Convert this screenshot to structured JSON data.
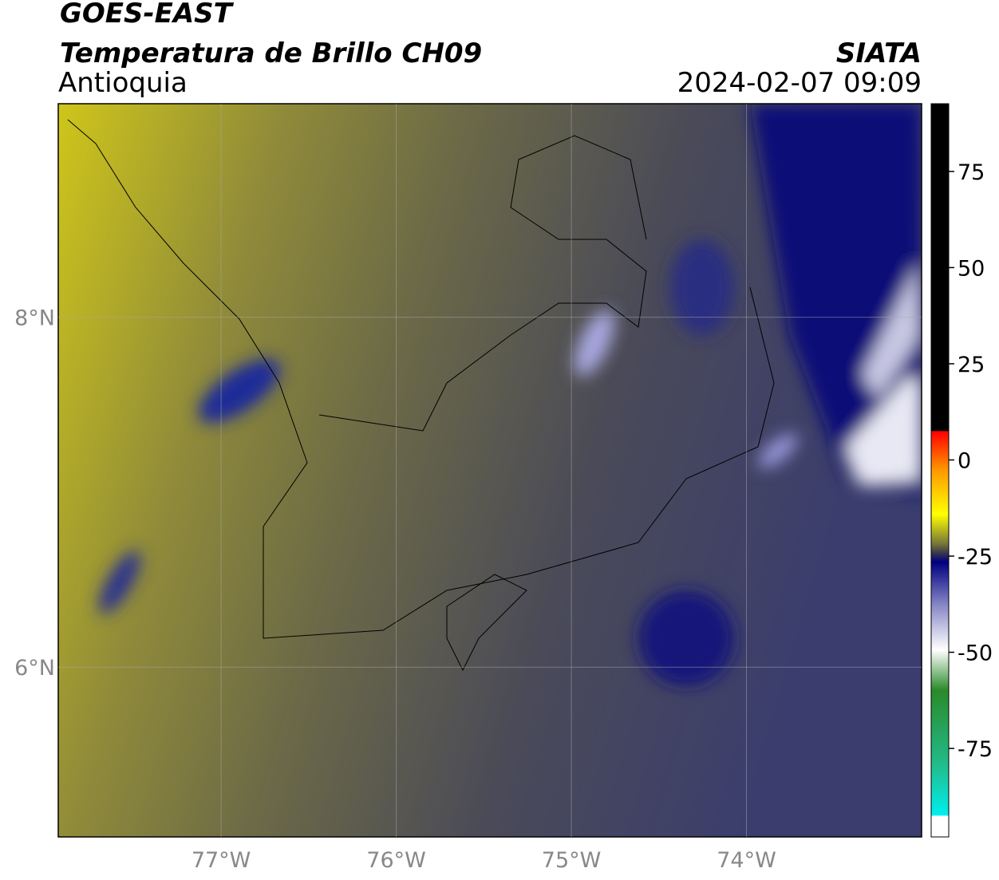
{
  "header": {
    "title": "GOES-EAST",
    "subtitle": "Temperatura de Brillo CH09",
    "region": "Antioquia",
    "source": "SIATA",
    "datetime": "2024-02-07 09:09"
  },
  "map": {
    "xlim": [
      -77.93,
      -73.0
    ],
    "ylim": [
      5.03,
      9.22
    ],
    "grid": true,
    "xticks": [
      {
        "value": -77,
        "label": "77°W"
      },
      {
        "value": -76,
        "label": "76°W"
      },
      {
        "value": -75,
        "label": "75°W"
      },
      {
        "value": -74,
        "label": "74°W"
      }
    ],
    "yticks": [
      {
        "value": 8,
        "label": "8°N"
      },
      {
        "value": 6,
        "label": "6°N"
      }
    ]
  },
  "colorbar": {
    "lim": [
      -98,
      92.6
    ],
    "ticks": [
      75,
      50,
      25,
      0,
      -25,
      -50,
      -75
    ]
  }
}
